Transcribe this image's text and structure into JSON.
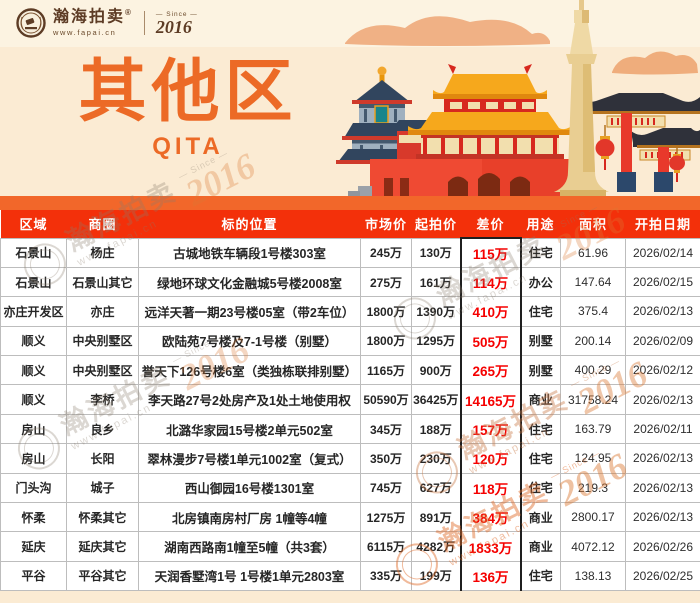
{
  "brand": {
    "name": "瀚海拍卖",
    "reg": "®",
    "url": "www.fapai.cn",
    "since_label": "— Since —",
    "since_year": "2016"
  },
  "hero": {
    "title": "其他区",
    "subtitle": "QITA"
  },
  "table": {
    "columns": [
      "区域",
      "商圈",
      "标的位置",
      "市场价",
      "起拍价",
      "差价",
      "用途",
      "面积",
      "开拍日期"
    ],
    "rows": [
      [
        "石景山",
        "杨庄",
        "古城地铁车辆段1号楼303室",
        "245万",
        "130万",
        "115万",
        "住宅",
        "61.96",
        "2026/02/14"
      ],
      [
        "石景山",
        "石景山其它",
        "绿地环球文化金融城5号楼2008室",
        "275万",
        "161万",
        "114万",
        "办公",
        "147.64",
        "2026/02/15"
      ],
      [
        "亦庄开发区",
        "亦庄",
        "远洋天著一期23号楼05室（带2车位）",
        "1800万",
        "1390万",
        "410万",
        "住宅",
        "375.4",
        "2026/02/13"
      ],
      [
        "顺义",
        "中央别墅区",
        "欧陆苑7号楼及7-1号楼（别墅）",
        "1800万",
        "1295万",
        "505万",
        "别墅",
        "200.14",
        "2026/02/09"
      ],
      [
        "顺义",
        "中央别墅区",
        "誉天下126号楼6室（类独栋联排别墅）",
        "1165万",
        "900万",
        "265万",
        "别墅",
        "400.29",
        "2026/02/12"
      ],
      [
        "顺义",
        "李桥",
        "李天路27号2处房产及1处土地使用权",
        "50590万",
        "36425万",
        "14165万",
        "商业",
        "31758.24",
        "2026/02/13"
      ],
      [
        "房山",
        "良乡",
        "北潞华家园15号楼2单元502室",
        "345万",
        "188万",
        "157万",
        "住宅",
        "163.79",
        "2026/02/11"
      ],
      [
        "房山",
        "长阳",
        "翠林漫步7号楼1单元1002室（复式）",
        "350万",
        "230万",
        "120万",
        "住宅",
        "124.95",
        "2026/02/13"
      ],
      [
        "门头沟",
        "城子",
        "西山御园16号楼1301室",
        "745万",
        "627万",
        "118万",
        "住宅",
        "219.3",
        "2026/02/13"
      ],
      [
        "怀柔",
        "怀柔其它",
        "北房镇南房村厂房 1幢等4幢",
        "1275万",
        "891万",
        "384万",
        "商业",
        "2800.17",
        "2026/02/13"
      ],
      [
        "延庆",
        "延庆其它",
        "湖南西路南1幢至5幢（共3套）",
        "6115万",
        "4282万",
        "1833万",
        "商业",
        "4072.12",
        "2026/02/26"
      ],
      [
        "平谷",
        "平谷其它",
        "天润香墅湾1号 1号楼1单元2803室",
        "335万",
        "199万",
        "136万",
        "住宅",
        "138.13",
        "2026/02/25"
      ]
    ]
  },
  "colors": {
    "accent_orange": "#EC6A26",
    "band_orange": "#F2672A",
    "header_red": "#F3300A",
    "diff_red": "#F50000",
    "background_cream": "#FBEBD3"
  }
}
